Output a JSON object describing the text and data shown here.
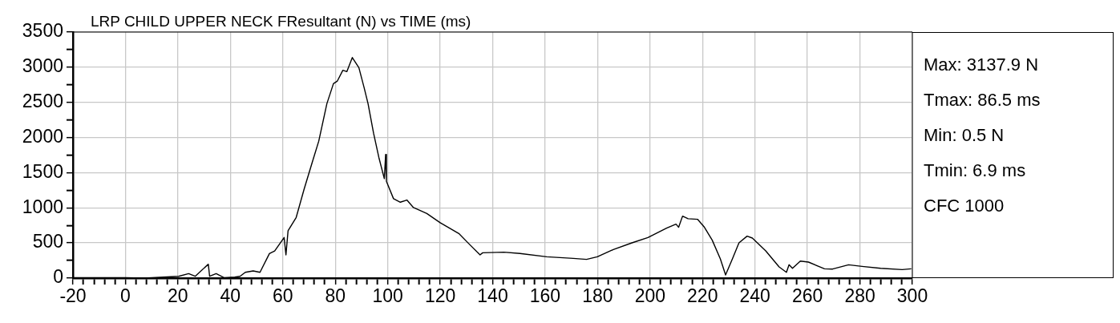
{
  "chart_data": {
    "type": "line",
    "title": "LRP CHILD UPPER NECK FResultant (N) vs TIME (ms)",
    "x": [
      -20,
      -10,
      0,
      6.9,
      10.2,
      20.3,
      24.1,
      26.6,
      31.6,
      32.1,
      34.6,
      37.7,
      41.7,
      43.7,
      45.7,
      48.7,
      51.3,
      54.9,
      56.9,
      60.5,
      61.2,
      62.0,
      65.1,
      68.1,
      71.2,
      73.7,
      76.8,
      79.3,
      80.8,
      82.9,
      84.4,
      86.5,
      89.0,
      91.0,
      92.5,
      94.6,
      96.6,
      98.7,
      99.2,
      99.5,
      102.2,
      104.8,
      107.3,
      109.8,
      114.9,
      120.0,
      127.1,
      131.1,
      135.2,
      136.2,
      144.3,
      150.4,
      160.6,
      170.7,
      175.8,
      179.9,
      186.0,
      193.1,
      199.2,
      206.3,
      209.9,
      210.9,
      212.4,
      214.5,
      218.1,
      220.6,
      223.7,
      226.8,
      228.8,
      231.4,
      233.9,
      237.0,
      239.0,
      244.1,
      249.2,
      252.0,
      253.0,
      254.3,
      257.3,
      260.4,
      266.5,
      269.6,
      275.7,
      280.8,
      287.9,
      296.1,
      299.6
    ],
    "series": [
      {
        "color": "#000000",
        "values": [
          5,
          5,
          5,
          0.5,
          5,
          26,
          64,
          26,
          198,
          26,
          64,
          5,
          15,
          26,
          83,
          102,
          83,
          349,
          387,
          578,
          331,
          673,
          863,
          1263,
          1644,
          1948,
          2481,
          2766,
          2804,
          2957,
          2937,
          3137.9,
          2994,
          2709,
          2481,
          2062,
          1719,
          1415,
          1758,
          1377,
          1130,
          1080,
          1111,
          1004,
          920,
          788,
          635,
          483,
          331,
          361,
          369,
          350,
          304,
          281,
          266,
          304,
          407,
          502,
          578,
          711,
          768,
          723,
          882,
          845,
          837,
          730,
          540,
          274,
          46,
          274,
          502,
          597,
          570,
          388,
          160,
          83,
          190,
          140,
          243,
          228,
          133,
          129,
          190,
          167,
          140,
          121,
          133
        ]
      }
    ],
    "xlim": [
      -20,
      300
    ],
    "ylim": [
      0,
      3500
    ],
    "xticks": [
      -20,
      {
        "value": -16,
        "label": null
      },
      {
        "value": -12,
        "label": null
      },
      {
        "value": -8,
        "label": null
      },
      {
        "value": -4,
        "label": null
      },
      0,
      {
        "value": 4,
        "label": null
      },
      {
        "value": 8,
        "label": null
      },
      {
        "value": 12,
        "label": null
      },
      {
        "value": 16,
        "label": null
      },
      20,
      {
        "value": 24,
        "label": null
      },
      {
        "value": 28,
        "label": null
      },
      {
        "value": 32,
        "label": null
      },
      {
        "value": 36,
        "label": null
      },
      40,
      {
        "value": 44,
        "label": null
      },
      {
        "value": 48,
        "label": null
      },
      {
        "value": 52,
        "label": null
      },
      {
        "value": 56,
        "label": null
      },
      60,
      {
        "value": 64,
        "label": null
      },
      {
        "value": 68,
        "label": null
      },
      {
        "value": 72,
        "label": null
      },
      {
        "value": 76,
        "label": null
      },
      80,
      {
        "value": 84,
        "label": null
      },
      {
        "value": 88,
        "label": null
      },
      {
        "value": 92,
        "label": null
      },
      {
        "value": 96,
        "label": null
      },
      100,
      {
        "value": 104,
        "label": null
      },
      {
        "value": 108,
        "label": null
      },
      {
        "value": 112,
        "label": null
      },
      {
        "value": 116,
        "label": null
      },
      120,
      {
        "value": 124,
        "label": null
      },
      {
        "value": 128,
        "label": null
      },
      {
        "value": 132,
        "label": null
      },
      {
        "value": 136,
        "label": null
      },
      140,
      {
        "value": 144,
        "label": null
      },
      {
        "value": 148,
        "label": null
      },
      {
        "value": 152,
        "label": null
      },
      {
        "value": 156,
        "label": null
      },
      160,
      {
        "value": 164,
        "label": null
      },
      {
        "value": 168,
        "label": null
      },
      {
        "value": 172,
        "label": null
      },
      {
        "value": 176,
        "label": null
      },
      180,
      {
        "value": 184,
        "label": null
      },
      {
        "value": 188,
        "label": null
      },
      {
        "value": 192,
        "label": null
      },
      {
        "value": 196,
        "label": null
      },
      200,
      {
        "value": 204,
        "label": null
      },
      {
        "value": 208,
        "label": null
      },
      {
        "value": 212,
        "label": null
      },
      {
        "value": 216,
        "label": null
      },
      220,
      {
        "value": 224,
        "label": null
      },
      {
        "value": 228,
        "label": null
      },
      {
        "value": 232,
        "label": null
      },
      {
        "value": 236,
        "label": null
      },
      240,
      {
        "value": 244,
        "label": null
      },
      {
        "value": 248,
        "label": null
      },
      {
        "value": 252,
        "label": null
      },
      {
        "value": 256,
        "label": null
      },
      260,
      {
        "value": 264,
        "label": null
      },
      {
        "value": 268,
        "label": null
      },
      {
        "value": 272,
        "label": null
      },
      {
        "value": 276,
        "label": null
      },
      280,
      {
        "value": 284,
        "label": null
      },
      {
        "value": 288,
        "label": null
      },
      {
        "value": 292,
        "label": null
      },
      {
        "value": 296,
        "label": null
      },
      300
    ],
    "yticks": [
      0,
      {
        "value": 250,
        "label": null
      },
      500,
      {
        "value": 750,
        "label": null
      },
      1000,
      {
        "value": 1250,
        "label": null
      },
      1500,
      {
        "value": 1750,
        "label": null
      },
      2000,
      {
        "value": 2250,
        "label": null
      },
      2500,
      {
        "value": 2750,
        "label": null
      },
      3000,
      {
        "value": 3250,
        "label": null
      },
      3500
    ],
    "grid": true,
    "marker": "none",
    "legend": false,
    "annotations": [
      "Max: 3137.9 N",
      "Tmax: 86.5 ms",
      "Min: 0.5 N",
      "Tmin: 6.9 ms",
      "CFC 1000"
    ]
  }
}
